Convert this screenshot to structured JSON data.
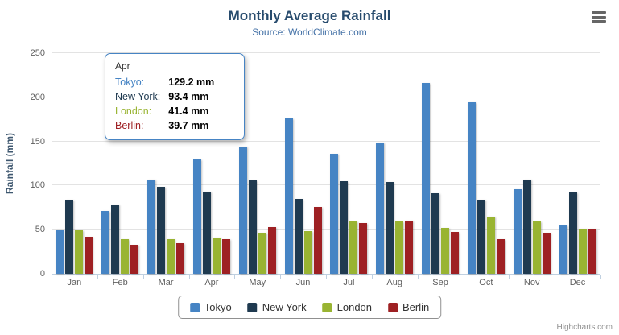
{
  "title": "Monthly Average Rainfall",
  "subtitle": "Source: WorldClimate.com",
  "y_axis_title": "Rainfall (mm)",
  "credits": "Highcharts.com",
  "chart_data": {
    "type": "bar",
    "title": "Monthly Average Rainfall",
    "subtitle": "Source: WorldClimate.com",
    "xlabel": "",
    "ylabel": "Rainfall (mm)",
    "ylim": [
      0,
      250
    ],
    "y_ticks": [
      0,
      50,
      100,
      150,
      200,
      250
    ],
    "grid": true,
    "legend_position": "bottom",
    "categories": [
      "Jan",
      "Feb",
      "Mar",
      "Apr",
      "May",
      "Jun",
      "Jul",
      "Aug",
      "Sep",
      "Oct",
      "Nov",
      "Dec"
    ],
    "series": [
      {
        "name": "Tokyo",
        "color": "#4684c4",
        "values": [
          49.9,
          71.5,
          106.4,
          129.2,
          144.0,
          176.0,
          135.6,
          148.5,
          216.4,
          194.1,
          95.6,
          54.4
        ]
      },
      {
        "name": "New York",
        "color": "#1f3a50",
        "values": [
          83.6,
          78.8,
          98.5,
          93.4,
          106.0,
          84.5,
          105.0,
          104.3,
          91.2,
          83.5,
          106.6,
          92.3
        ]
      },
      {
        "name": "London",
        "color": "#99b432",
        "values": [
          48.9,
          38.8,
          39.3,
          41.4,
          47.0,
          48.3,
          59.0,
          59.6,
          52.4,
          65.2,
          59.3,
          51.2
        ]
      },
      {
        "name": "Berlin",
        "color": "#9e2023",
        "values": [
          42.4,
          33.2,
          34.5,
          39.7,
          52.6,
          75.5,
          57.4,
          60.4,
          47.6,
          39.1,
          46.8,
          51.1
        ]
      }
    ]
  },
  "tooltip": {
    "category": "Apr",
    "rows": [
      {
        "name": "Tokyo",
        "value": "129.2 mm",
        "color": "#4684c4"
      },
      {
        "name": "New York",
        "value": "93.4 mm",
        "color": "#1f3a50"
      },
      {
        "name": "London",
        "value": "41.4 mm",
        "color": "#99b432"
      },
      {
        "name": "Berlin",
        "value": "39.7 mm",
        "color": "#9e2023"
      }
    ]
  }
}
